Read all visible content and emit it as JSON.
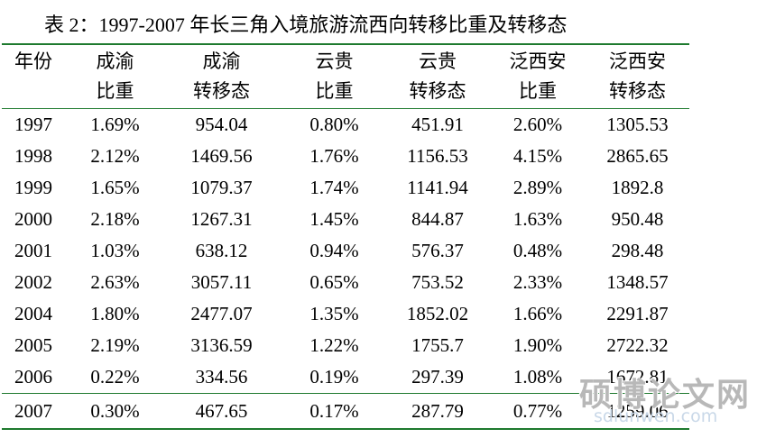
{
  "title": "表 2：1997-2007 年长三角入境旅游流西向转移比重及转移态",
  "table": {
    "headers": [
      [
        "年份",
        ""
      ],
      [
        "成渝",
        "比重"
      ],
      [
        "成渝",
        "转移态"
      ],
      [
        "云贵",
        "比重"
      ],
      [
        "云贵",
        "转移态"
      ],
      [
        "泛西安",
        "比重"
      ],
      [
        "泛西安",
        "转移态"
      ]
    ],
    "rows": [
      [
        "1997",
        "1.69%",
        "954.04",
        "0.80%",
        "451.91",
        "2.60%",
        "1305.53"
      ],
      [
        "1998",
        "2.12%",
        "1469.56",
        "1.76%",
        "1156.53",
        "4.15%",
        "2865.65"
      ],
      [
        "1999",
        "1.65%",
        "1079.37",
        "1.74%",
        "1141.94",
        "2.89%",
        "1892.8"
      ],
      [
        "2000",
        "2.18%",
        "1267.31",
        "1.45%",
        "844.87",
        "1.63%",
        "950.48"
      ],
      [
        "2001",
        "1.03%",
        "638.12",
        "0.94%",
        "576.37",
        "0.48%",
        "298.48"
      ],
      [
        "2002",
        "2.63%",
        "3057.11",
        "0.65%",
        "753.52",
        "2.33%",
        "1348.57"
      ],
      [
        "2004",
        "1.80%",
        "2477.07",
        "1.35%",
        "1852.02",
        "1.66%",
        "2291.87"
      ],
      [
        "2005",
        "2.19%",
        "3136.59",
        "1.22%",
        "1755.7",
        "1.90%",
        "2722.32"
      ],
      [
        "2006",
        "0.22%",
        "334.56",
        "0.19%",
        "297.39",
        "1.08%",
        "1672.81"
      ],
      [
        "2007",
        "0.30%",
        "467.65",
        "0.17%",
        "287.79",
        "0.77%",
        "1259.06"
      ]
    ]
  },
  "watermark": {
    "text": "硕博论文网",
    "url": "sdlunwen.com"
  }
}
